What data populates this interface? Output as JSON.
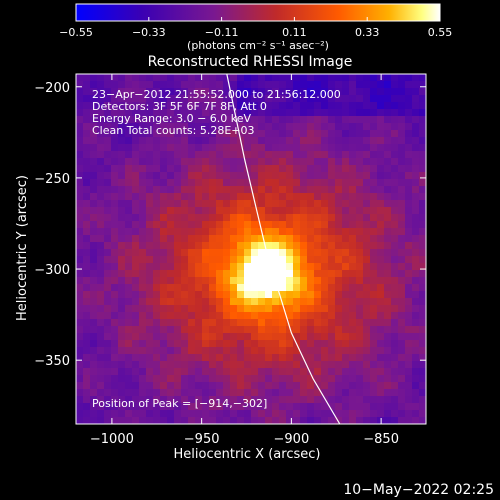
{
  "colors": {
    "background": "#000000",
    "text": "#ffffff",
    "colormap": [
      "#0000ff",
      "#3a00b4",
      "#7a1890",
      "#c02a2a",
      "#ff5a00",
      "#ffb000",
      "#ffff80",
      "#ffffff"
    ]
  },
  "chart_data": {
    "type": "heatmap",
    "title": "Reconstructed RHESSI Image",
    "xlabel": "Heliocentric X (arcsec)",
    "ylabel": "Heliocentric Y (arcsec)",
    "xlim": [
      -1020,
      -825
    ],
    "ylim": [
      -385,
      -193
    ],
    "xticks": [
      -1000,
      -950,
      -900,
      -850
    ],
    "xtick_labels": [
      "−1000",
      "−950",
      "−900",
      "−850"
    ],
    "yticks": [
      -200,
      -250,
      -300,
      -350
    ],
    "ytick_labels": [
      "−200",
      "−250",
      "−300",
      "−350"
    ],
    "grid": false,
    "peak": {
      "x": -914,
      "y": -302,
      "value": 0.55
    },
    "limb": [
      [
        -936,
        -193
      ],
      [
        -926,
        -240
      ],
      [
        -914,
        -290
      ],
      [
        -900,
        -335
      ],
      [
        -888,
        -360
      ],
      [
        -873,
        -385
      ]
    ],
    "colorbar": {
      "min": -0.55,
      "max": 0.55,
      "ticks": [
        -0.55,
        -0.33,
        -0.11,
        0.11,
        0.33,
        0.55
      ],
      "tick_labels": [
        "−0.55",
        "−0.33",
        "−0.11",
        "0.11",
        "0.33",
        "0.55"
      ],
      "units": "(photons cm⁻² s⁻¹ asec⁻²)"
    },
    "annotations": [
      "23−Apr−2012 21:55:52.000 to 21:56:12.000",
      "Detectors: 3F 5F 6F 7F 8F, Att 0",
      "Energy Range: 3.0 − 6.0 keV",
      "Clean    Total counts: 5.28E+03"
    ],
    "peak_label": "Position of Peak = [−914,−302]",
    "footer": "10−May−2022 02:25"
  }
}
